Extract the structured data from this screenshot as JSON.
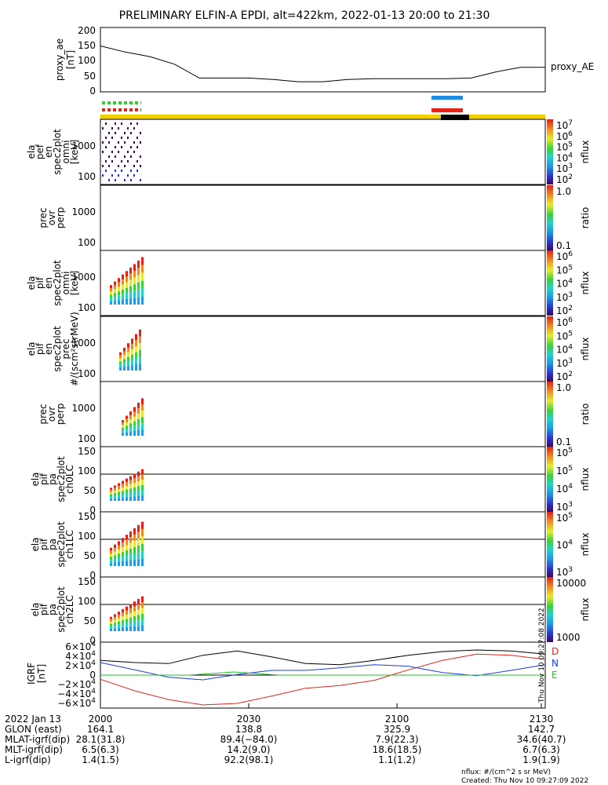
{
  "title": "PRELIMINARY ELFIN-A EPDI, alt=422km, 2022-01-13 20:00 to 21:30",
  "panels": [
    {
      "id": "ae",
      "ylabel": [
        "proxy_ae",
        "[nT]"
      ],
      "ticks": [
        "200",
        "150",
        "100",
        "50",
        "0"
      ],
      "right_label": "proxy_AE"
    },
    {
      "id": "pef",
      "ylabel": [
        "ela",
        "pef",
        "en",
        "spec2plot",
        "omni",
        "[keV]"
      ],
      "ticks": [
        "1000",
        "100"
      ],
      "cbar_label": "nflux",
      "cbar_ticks": [
        {
          "b": "10",
          "e": "7"
        },
        {
          "b": "10",
          "e": "6"
        },
        {
          "b": "10",
          "e": "5"
        },
        {
          "b": "10",
          "e": "4"
        },
        {
          "b": "10",
          "e": "3"
        },
        {
          "b": "10",
          "e": "2"
        }
      ]
    },
    {
      "id": "prec1",
      "ylabel": [
        "prec",
        "ovr",
        "perp"
      ],
      "ticks": [
        "1000",
        "100"
      ],
      "cbar_label": "ratio",
      "cbar_ticks": [
        "1.0",
        "0.1"
      ]
    },
    {
      "id": "pif",
      "ylabel": [
        "ela",
        "pif",
        "en",
        "spec2plot",
        "omni",
        "[keV]"
      ],
      "ticks": [
        "1000",
        "100"
      ],
      "cbar_label": "nflux",
      "cbar_ticks": [
        {
          "b": "10",
          "e": "6"
        },
        {
          "b": "10",
          "e": "5"
        },
        {
          "b": "10",
          "e": "4"
        },
        {
          "b": "10",
          "e": "3"
        },
        {
          "b": "10",
          "e": "2"
        }
      ]
    },
    {
      "id": "pifprec",
      "ylabel": [
        "ela",
        "pif",
        "en",
        "spec2plot",
        "prec",
        "#/(scm²strMeV)"
      ],
      "ticks": [
        "1000",
        "100"
      ],
      "cbar_label": "nflux",
      "cbar_ticks": [
        {
          "b": "10",
          "e": "6"
        },
        {
          "b": "10",
          "e": "5"
        },
        {
          "b": "10",
          "e": "4"
        },
        {
          "b": "10",
          "e": "3"
        },
        {
          "b": "10",
          "e": "2"
        }
      ]
    },
    {
      "id": "prec2",
      "ylabel": [
        "prec",
        "ovr",
        "perp"
      ],
      "ticks": [
        "1000",
        "100"
      ],
      "cbar_label": "ratio",
      "cbar_ticks": [
        "1.0",
        "0.1"
      ]
    },
    {
      "id": "ch0",
      "ylabel": [
        "ela",
        "pif",
        "pa",
        "spec2plot",
        "ch0LC"
      ],
      "ticks": [
        "150",
        "100",
        "50",
        "0"
      ],
      "cbar_label": "nflux",
      "cbar_ticks": [
        {
          "b": "10",
          "e": "5"
        },
        {
          "b": "10",
          "e": "5"
        },
        {
          "b": "10",
          "e": "4"
        },
        {
          "b": "10",
          "e": "3"
        }
      ]
    },
    {
      "id": "ch1",
      "ylabel": [
        "ela",
        "pif",
        "pa",
        "spec2plot",
        "ch1LC"
      ],
      "ticks": [
        "150",
        "100",
        "50",
        "0"
      ],
      "cbar_label": "nflux",
      "cbar_ticks": [
        {
          "b": "10",
          "e": "5"
        },
        {
          "b": "10",
          "e": "4"
        },
        {
          "b": "10",
          "e": "3"
        }
      ]
    },
    {
      "id": "ch2",
      "ylabel": [
        "ela",
        "pif",
        "pa",
        "spec2plot",
        "ch2LC"
      ],
      "ticks": [
        "150",
        "100",
        "50",
        "0"
      ],
      "cbar_label": "nflux",
      "cbar_ticks": [
        "10000",
        "1000"
      ]
    },
    {
      "id": "igrf",
      "ylabel": [
        "IGRF",
        "[nT]"
      ],
      "ticks": [
        {
          "b": "6×10",
          "e": "4"
        },
        {
          "b": "4×10",
          "e": "4"
        },
        {
          "b": "2×10",
          "e": "4"
        },
        {
          "b": "0",
          "e": ""
        },
        {
          "b": "−2×10",
          "e": "4"
        },
        {
          "b": "−4×10",
          "e": "4"
        },
        {
          "b": "−6×10",
          "e": "4"
        }
      ],
      "legend": [
        {
          "name": "D",
          "color": "#e0261a"
        },
        {
          "name": "N",
          "color": "#1b3fd6"
        },
        {
          "name": "E",
          "color": "#22c02a"
        }
      ]
    }
  ],
  "xaxis": {
    "row_labels": [
      "2022 Jan 13",
      "GLON (east)",
      "MLAT-igrf(dip)",
      "MLT-igrf(dip)",
      "L-igrf(dip)"
    ],
    "columns": [
      [
        "2000",
        "164.1",
        "28.1(31.8)",
        "6.5(6.3)",
        "1.4(1.5)"
      ],
      [
        "2030",
        "138.8",
        "89.4(−84.0)",
        "14.2(9.0)",
        "92.2(98.1)"
      ],
      [
        "2100",
        "325.9",
        "7.9(22.3)",
        "18.6(18.5)",
        "1.1(1.2)"
      ],
      [
        "2130",
        "142.7",
        "34.6(40.7)",
        "6.7(6.3)",
        "1.9(1.9)"
      ]
    ]
  },
  "timestamp_vertical": "Thu Nov 10 09:27:08 2022",
  "footer": [
    "nflux: #/(cm^2 s sr MeV)",
    "Created: Thu Nov 10 09:27:09 2022"
  ],
  "chart_data": {
    "type": "line",
    "title": "PRELIMINARY ELFIN-A EPDI, alt=422km, 2022-01-13 20:00 to 21:30",
    "x_ticks": [
      "2000",
      "2030",
      "2100",
      "2130"
    ],
    "proxy_ae": {
      "x_min": [
        0,
        5,
        10,
        15,
        20,
        25,
        30,
        35,
        40,
        45,
        50,
        55,
        60,
        65,
        70,
        75,
        80,
        85,
        90
      ],
      "values": [
        145,
        125,
        110,
        85,
        40,
        40,
        40,
        35,
        28,
        28,
        35,
        38,
        38,
        38,
        38,
        40,
        60,
        75,
        75
      ],
      "ylim": [
        0,
        200
      ]
    },
    "igrf": {
      "ylim": [
        -60000,
        60000
      ],
      "series": [
        {
          "name": "D",
          "values": [
            28000,
            24000,
            22000,
            38000,
            46000,
            35000,
            22000,
            20000,
            28000,
            38000,
            45000,
            48000,
            46000,
            40000
          ]
        },
        {
          "name": "N",
          "values": [
            24000,
            10000,
            -4000,
            -9000,
            1000,
            9000,
            9000,
            14000,
            20000,
            17000,
            5000,
            -1000,
            9000,
            20000
          ]
        },
        {
          "name": "E",
          "values": [
            -8000,
            -30000,
            -47000,
            -57000,
            -54000,
            -40000,
            -25000,
            -20000,
            -10000,
            10000,
            28000,
            40000,
            38000,
            30000
          ]
        }
      ]
    }
  }
}
